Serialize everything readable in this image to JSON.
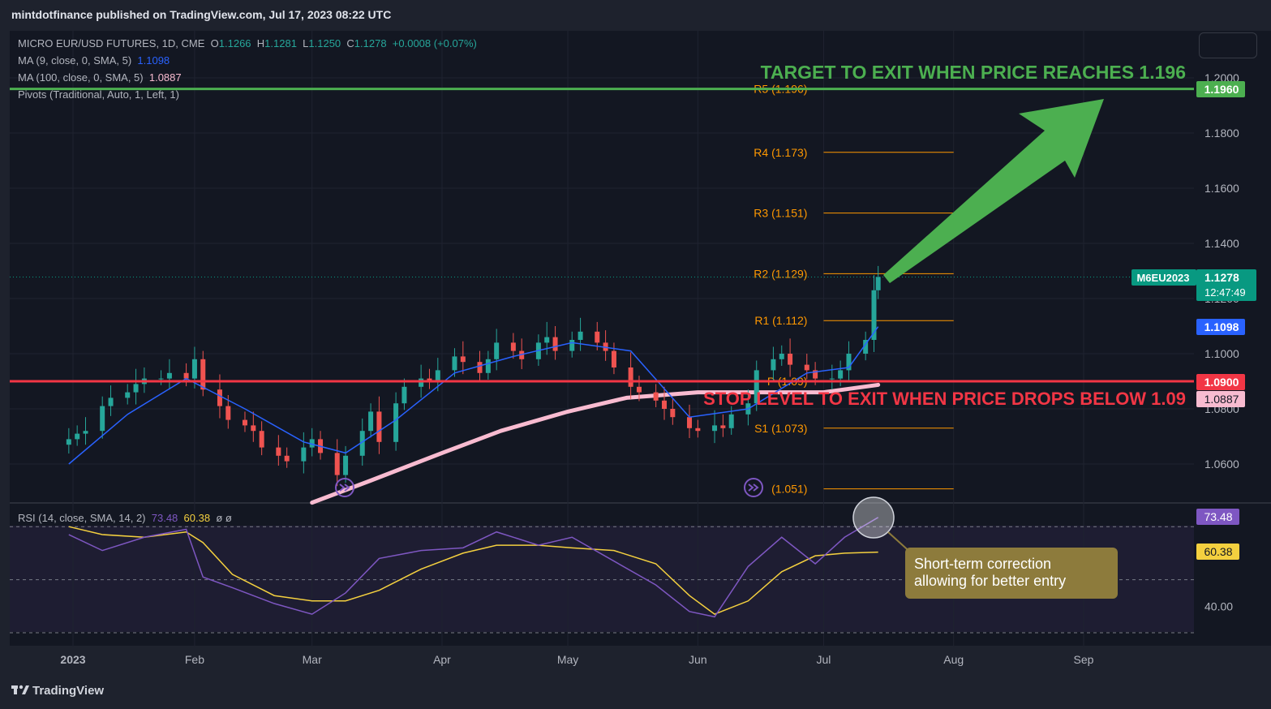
{
  "header": {
    "published_by": "mintdotfinance published on TradingView.com, Jul 17, 2023 08:22 UTC"
  },
  "legend": {
    "symbol_line": "MICRO EUR/USD FUTURES, 1D, CME",
    "open_label": "O",
    "open": "1.1266",
    "high_label": "H",
    "high": "1.1281",
    "low_label": "L",
    "low": "1.1250",
    "close_label": "C",
    "close": "1.1278",
    "change": "+0.0008 (+0.07%)",
    "ma9_label": "MA (9, close, 0, SMA, 5)",
    "ma9_value": "1.1098",
    "ma100_label": "MA (100, close, 0, SMA, 5)",
    "ma100_value": "1.0887",
    "pivots_label": "Pivots (Traditional, Auto, 1, Left, 1)",
    "rsi_label": "RSI (14, close, SMA, 14, 2)",
    "rsi_value": "73.48",
    "rsi_ma_value": "60.38",
    "rsi_extra": "ø ø"
  },
  "annotations": {
    "target_text": "TARGET TO EXIT WHEN PRICE REACHES 1.196",
    "stop_text": "STOP LEVEL TO EXIT WHEN PRICE DROPS BELOW 1.09",
    "callout_line1": "Short-term correction",
    "callout_line2": "allowing for better entry"
  },
  "price_badges": {
    "target": "1.1960",
    "ticker": "M6EU2023",
    "last": "1.1278",
    "countdown": "12:47:49",
    "ma9": "1.1098",
    "stop": "1.0900",
    "ma100": "1.0887",
    "rsi": "73.48",
    "rsi_ma": "60.38"
  },
  "pivots": [
    {
      "label": "R5 (1.196)",
      "value": 1.196
    },
    {
      "label": "R4 (1.173)",
      "value": 1.173
    },
    {
      "label": "R3 (1.151)",
      "value": 1.151
    },
    {
      "label": "R2 (1.129)",
      "value": 1.129
    },
    {
      "label": "R1 (1.112)",
      "value": 1.112
    },
    {
      "label": "P (1.09)",
      "value": 1.09
    },
    {
      "label": "S1 (1.073)",
      "value": 1.073
    },
    {
      "label": "(1.051)",
      "value": 1.051
    }
  ],
  "colors": {
    "background": "#131722",
    "up_candle": "#26a69a",
    "down_candle": "#ef5350",
    "ma9": "#2962ff",
    "ma100": "#f8bbd0",
    "target_line": "#4caf50",
    "stop_line": "#f23645",
    "pivot": "#ff9800",
    "rsi": "#7e57c2",
    "rsi_ma": "#f4d03f",
    "callout": "#8d7b3c"
  },
  "footer": {
    "brand": "TradingView"
  },
  "chart_data": {
    "type": "candlestick",
    "x_axis": {
      "tick_labels": [
        "2023",
        "Feb",
        "Mar",
        "Apr",
        "May",
        "Jun",
        "Jul",
        "Aug",
        "Sep"
      ],
      "range": [
        "2023-01-01",
        "2023-09-20"
      ]
    },
    "y_axis": {
      "tick_labels": [
        "1.0600",
        "1.0800",
        "1.1000",
        "1.1200",
        "1.1400",
        "1.1600",
        "1.1800",
        "1.2000"
      ],
      "ylim": [
        1.04,
        1.2
      ]
    },
    "series": [
      {
        "name": "Close",
        "x": [
          "2023-01-02",
          "2023-01-04",
          "2023-01-06",
          "2023-01-10",
          "2023-01-12",
          "2023-01-16",
          "2023-01-18",
          "2023-01-20",
          "2023-01-24",
          "2023-01-26",
          "2023-01-30",
          "2023-02-01",
          "2023-02-03",
          "2023-02-07",
          "2023-02-09",
          "2023-02-13",
          "2023-02-15",
          "2023-02-17",
          "2023-02-21",
          "2023-02-23",
          "2023-02-27",
          "2023-03-01",
          "2023-03-03",
          "2023-03-07",
          "2023-03-09",
          "2023-03-13",
          "2023-03-15",
          "2023-03-17",
          "2023-03-21",
          "2023-03-23",
          "2023-03-27",
          "2023-03-29",
          "2023-03-31",
          "2023-04-04",
          "2023-04-06",
          "2023-04-10",
          "2023-04-12",
          "2023-04-14",
          "2023-04-18",
          "2023-04-20",
          "2023-04-24",
          "2023-04-26",
          "2023-04-28",
          "2023-05-02",
          "2023-05-04",
          "2023-05-08",
          "2023-05-10",
          "2023-05-12",
          "2023-05-16",
          "2023-05-18",
          "2023-05-22",
          "2023-05-24",
          "2023-05-26",
          "2023-05-30",
          "2023-06-01",
          "2023-06-05",
          "2023-06-07",
          "2023-06-09",
          "2023-06-13",
          "2023-06-15",
          "2023-06-19",
          "2023-06-21",
          "2023-06-23",
          "2023-06-27",
          "2023-06-29",
          "2023-07-03",
          "2023-07-05",
          "2023-07-07",
          "2023-07-11",
          "2023-07-13",
          "2023-07-14"
        ],
        "values": [
          1.069,
          1.071,
          1.072,
          1.081,
          1.084,
          1.086,
          1.089,
          1.091,
          1.091,
          1.093,
          1.091,
          1.098,
          1.087,
          1.081,
          1.076,
          1.074,
          1.072,
          1.066,
          1.063,
          1.061,
          1.066,
          1.069,
          1.064,
          1.056,
          1.063,
          1.072,
          1.079,
          1.068,
          1.082,
          1.088,
          1.091,
          1.09,
          1.094,
          1.099,
          1.097,
          1.093,
          1.098,
          1.104,
          1.101,
          1.098,
          1.104,
          1.106,
          1.101,
          1.105,
          1.108,
          1.104,
          1.101,
          1.095,
          1.088,
          1.086,
          1.083,
          1.08,
          1.077,
          1.073,
          1.072,
          1.074,
          1.073,
          1.078,
          1.082,
          1.094,
          1.098,
          1.1,
          1.096,
          1.094,
          1.091,
          1.091,
          1.094,
          1.1,
          1.105,
          1.123,
          1.1278
        ]
      },
      {
        "name": "MA (9, close, 0, SMA, 5)",
        "x": [
          "2023-01-02",
          "2023-01-16",
          "2023-01-30",
          "2023-02-13",
          "2023-02-27",
          "2023-03-09",
          "2023-03-21",
          "2023-04-04",
          "2023-04-18",
          "2023-05-02",
          "2023-05-16",
          "2023-05-30",
          "2023-06-13",
          "2023-06-27",
          "2023-07-07",
          "2023-07-14"
        ],
        "values": [
          1.06,
          1.078,
          1.091,
          1.08,
          1.068,
          1.064,
          1.076,
          1.093,
          1.099,
          1.104,
          1.101,
          1.077,
          1.08,
          1.093,
          1.095,
          1.1098
        ]
      },
      {
        "name": "MA (100, close, 0, SMA, 5)",
        "x": [
          "2023-03-01",
          "2023-03-15",
          "2023-04-01",
          "2023-04-15",
          "2023-05-01",
          "2023-05-15",
          "2023-06-01",
          "2023-06-15",
          "2023-07-01",
          "2023-07-14"
        ],
        "values": [
          1.046,
          1.054,
          1.064,
          1.072,
          1.079,
          1.084,
          1.086,
          1.086,
          1.086,
          1.0887
        ]
      }
    ],
    "levels": [
      {
        "name": "Target",
        "value": 1.196
      },
      {
        "name": "Stop",
        "value": 1.09
      },
      {
        "name": "Last",
        "value": 1.1278
      }
    ],
    "rsi": {
      "tick_labels": [
        "40.00"
      ],
      "ylim": [
        25,
        85
      ],
      "x": [
        "2023-01-02",
        "2023-01-10",
        "2023-01-20",
        "2023-01-30",
        "2023-02-03",
        "2023-02-10",
        "2023-02-20",
        "2023-03-01",
        "2023-03-09",
        "2023-03-17",
        "2023-03-27",
        "2023-04-06",
        "2023-04-14",
        "2023-04-24",
        "2023-05-02",
        "2023-05-12",
        "2023-05-22",
        "2023-05-30",
        "2023-06-05",
        "2023-06-13",
        "2023-06-21",
        "2023-06-29",
        "2023-07-06",
        "2023-07-14"
      ],
      "values": [
        67,
        61,
        66,
        69,
        51,
        47,
        41,
        37,
        45,
        58,
        61,
        62,
        68,
        63,
        66,
        57,
        48,
        38,
        36,
        55,
        66,
        56,
        66,
        73.48
      ],
      "ma_values": [
        70,
        67,
        66,
        68,
        64,
        52,
        44,
        42,
        42,
        46,
        54,
        60,
        63,
        63,
        62,
        61,
        56,
        44,
        37,
        42,
        53,
        59,
        60,
        60.38
      ],
      "overbought": 70,
      "oversold": 30
    }
  }
}
